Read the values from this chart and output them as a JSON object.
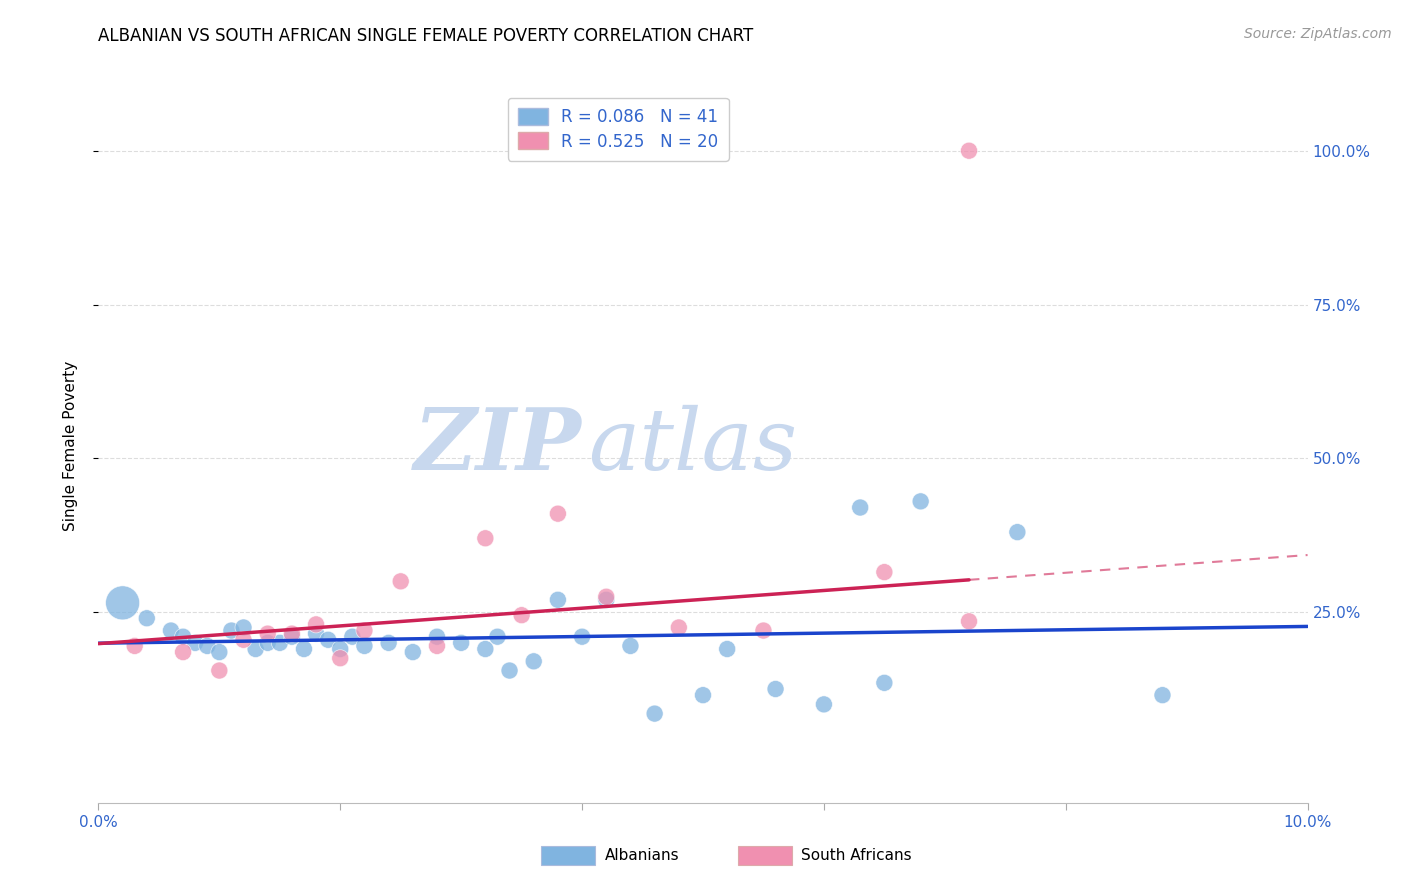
{
  "title": "ALBANIAN VS SOUTH AFRICAN SINGLE FEMALE POVERTY CORRELATION CHART",
  "source": "Source: ZipAtlas.com",
  "ylabel": "Single Female Poverty",
  "xlim": [
    0.0,
    0.1
  ],
  "ylim": [
    0.0,
    1.05
  ],
  "legend_entries": [
    {
      "label": "R = 0.086   N = 41",
      "color": "#a8c8e8"
    },
    {
      "label": "R = 0.525   N = 20",
      "color": "#f8b8cc"
    }
  ],
  "albanian_color": "#80b4e0",
  "sa_color": "#f090b0",
  "albanian_line_color": "#1a44cc",
  "sa_line_color": "#cc2255",
  "watermark_zip": "ZIP",
  "watermark_atlas": "atlas",
  "albanian_x": [
    0.002,
    0.004,
    0.006,
    0.007,
    0.008,
    0.009,
    0.01,
    0.011,
    0.012,
    0.013,
    0.014,
    0.015,
    0.016,
    0.017,
    0.018,
    0.019,
    0.02,
    0.021,
    0.022,
    0.024,
    0.026,
    0.028,
    0.03,
    0.032,
    0.033,
    0.034,
    0.036,
    0.038,
    0.04,
    0.042,
    0.044,
    0.046,
    0.05,
    0.052,
    0.056,
    0.06,
    0.063,
    0.065,
    0.068,
    0.076,
    0.088
  ],
  "albanian_y": [
    0.265,
    0.24,
    0.22,
    0.21,
    0.2,
    0.195,
    0.185,
    0.22,
    0.225,
    0.19,
    0.2,
    0.2,
    0.21,
    0.19,
    0.215,
    0.205,
    0.19,
    0.21,
    0.195,
    0.2,
    0.185,
    0.21,
    0.2,
    0.19,
    0.21,
    0.155,
    0.17,
    0.27,
    0.21,
    0.27,
    0.195,
    0.085,
    0.115,
    0.19,
    0.125,
    0.1,
    0.42,
    0.135,
    0.43,
    0.38,
    0.115
  ],
  "albanian_sizes": [
    600,
    150,
    150,
    150,
    150,
    150,
    150,
    150,
    150,
    150,
    150,
    150,
    150,
    150,
    150,
    150,
    150,
    150,
    150,
    150,
    150,
    150,
    150,
    150,
    150,
    150,
    150,
    150,
    150,
    150,
    150,
    150,
    150,
    150,
    150,
    150,
    150,
    150,
    150,
    150,
    150
  ],
  "sa_x": [
    0.003,
    0.007,
    0.01,
    0.012,
    0.014,
    0.016,
    0.018,
    0.02,
    0.022,
    0.025,
    0.028,
    0.032,
    0.035,
    0.038,
    0.042,
    0.048,
    0.055,
    0.065,
    0.072,
    0.072
  ],
  "sa_y": [
    0.195,
    0.185,
    0.155,
    0.205,
    0.215,
    0.215,
    0.23,
    0.175,
    0.22,
    0.3,
    0.195,
    0.37,
    0.245,
    0.41,
    0.275,
    0.225,
    0.22,
    0.315,
    0.235,
    1.0
  ],
  "sa_sizes": [
    150,
    150,
    150,
    150,
    150,
    150,
    150,
    150,
    150,
    150,
    150,
    150,
    150,
    150,
    150,
    150,
    150,
    150,
    150,
    150
  ],
  "background_color": "#ffffff",
  "grid_color": "#dddddd",
  "yticks": [
    0.25,
    0.5,
    0.75,
    1.0
  ],
  "ytick_labels": [
    "25.0%",
    "50.0%",
    "75.0%",
    "100.0%"
  ],
  "xtick_positions": [
    0.0,
    0.1
  ],
  "xtick_labels": [
    "0.0%",
    "10.0%"
  ]
}
